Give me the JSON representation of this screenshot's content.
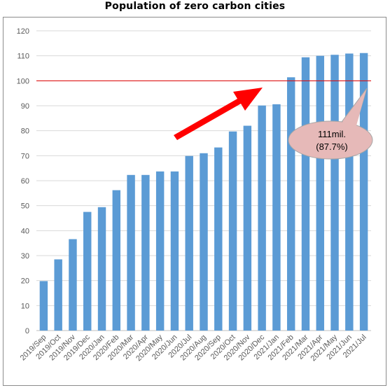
{
  "chart_data": {
    "type": "bar",
    "title": "Population of zero carbon cities",
    "xlabel": "",
    "ylabel": "",
    "ylim": [
      0,
      120
    ],
    "yticks": [
      0,
      10,
      20,
      30,
      40,
      50,
      60,
      70,
      80,
      90,
      100,
      110,
      120
    ],
    "grid": true,
    "legend": "none",
    "categories": [
      "2019/Sep",
      "2019/Oct",
      "2019/Nov",
      "2019/Dec",
      "2020/Jan",
      "2020/Feb",
      "2020/Mar",
      "2020/Apr",
      "2020/May",
      "2020/Jun",
      "2020/Jul",
      "2020/Aug",
      "2020/Sep",
      "2020/Oct",
      "2020/Nov",
      "2020/Dec",
      "2021/Jan",
      "2021/Feb",
      "2021/Mar",
      "2021/Apr",
      "2021/May",
      "2021/Jun",
      "2021/Jul"
    ],
    "values": [
      19.8,
      28.5,
      36.6,
      47.5,
      49.4,
      56.2,
      62.3,
      62.3,
      63.7,
      63.7,
      69.9,
      71.0,
      73.3,
      79.7,
      82.0,
      90.1,
      90.6,
      101.4,
      109.4,
      110.0,
      110.4,
      110.9,
      111.1
    ],
    "reference_line": {
      "value": 100,
      "color": "#e00000"
    },
    "bar_color": "#5b9bd5",
    "annotation": {
      "line1": "111mil.",
      "line2": "(87.7%)",
      "color": "#e6b9b8"
    },
    "arrow_color": "#ff0000"
  }
}
